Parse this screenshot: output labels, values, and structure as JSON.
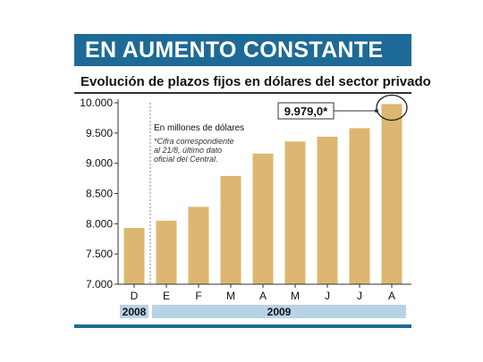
{
  "header": {
    "title": "EN AUMENTO CONSTANTE"
  },
  "chart_data": {
    "type": "bar",
    "title": "Evolución de plazos fijos en dólares del sector privado",
    "unit_note": "En millones de dólares",
    "footnote": [
      "*Cifra correspondiente",
      "al 21/8, último dato",
      "oficial del Central."
    ],
    "categories": [
      "D",
      "E",
      "F",
      "M",
      "A",
      "M",
      "J",
      "J",
      "A"
    ],
    "values": [
      7930,
      8050,
      8280,
      8790,
      9160,
      9360,
      9440,
      9580,
      9979
    ],
    "ylim": [
      7000,
      10000
    ],
    "yticks": [
      "7.000",
      "7.500",
      "8.000",
      "8.500",
      "9.000",
      "9.500",
      "10.000"
    ],
    "ytick_values": [
      7000,
      7500,
      8000,
      8500,
      9000,
      9500,
      10000
    ],
    "callout": {
      "label": "9.979,0*",
      "index": 8
    },
    "years": [
      {
        "label": "2008",
        "start": 0,
        "end": 0
      },
      {
        "label": "2009",
        "start": 1,
        "end": 8
      }
    ],
    "bar_color": "#ddb771",
    "year_band_color": "#b8d3e6",
    "grid": false
  }
}
